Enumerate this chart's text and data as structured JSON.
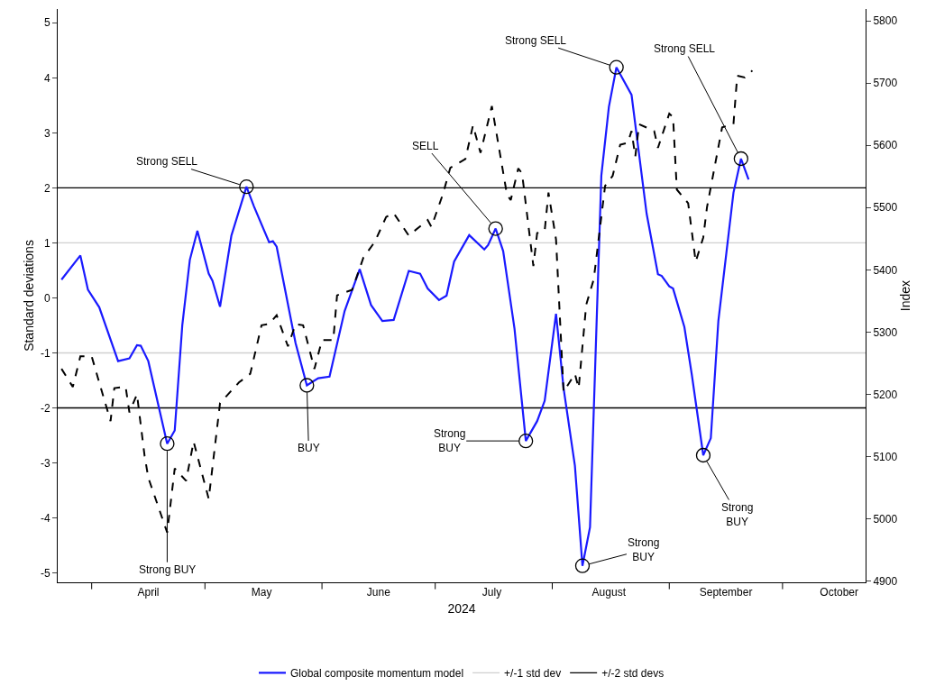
{
  "chart_data": {
    "type": "line",
    "xlabel": "2024",
    "ylabel": "Standard deviations",
    "y2label": "Index",
    "xlim": [
      "2024-03-23",
      "2024-10-23"
    ],
    "xticks": [
      {
        "value": "2024-04-01",
        "label": null
      },
      {
        "value": "2024-04-16",
        "label": "April"
      },
      {
        "value": "2024-05-01",
        "label": null
      },
      {
        "value": "2024-05-16",
        "label": "May"
      },
      {
        "value": "2024-06-01",
        "label": null
      },
      {
        "value": "2024-06-16",
        "label": "June"
      },
      {
        "value": "2024-07-01",
        "label": null
      },
      {
        "value": "2024-07-16",
        "label": "July"
      },
      {
        "value": "2024-08-01",
        "label": null
      },
      {
        "value": "2024-08-16",
        "label": "August"
      },
      {
        "value": "2024-09-01",
        "label": null
      },
      {
        "value": "2024-09-16",
        "label": "September"
      },
      {
        "value": "2024-10-01",
        "label": null
      },
      {
        "value": "2024-10-16",
        "label": "October"
      }
    ],
    "ylim": [
      -5.17,
      5.25
    ],
    "yticks": [
      -5,
      -4,
      -3,
      -2,
      -1,
      0,
      1,
      2,
      3,
      4,
      5
    ],
    "y2lim": [
      4898,
      5819
    ],
    "y2ticks": [
      4900,
      5000,
      5100,
      5200,
      5300,
      5400,
      5500,
      5600,
      5700,
      5800
    ],
    "legend": "bottom",
    "series": [
      {
        "color": "#000000",
        "axis": "y2",
        "line_style": "dashed",
        "x": [
          "2024-03-24",
          "2024-03-27",
          "2024-03-29",
          "2024-04-01",
          "2024-04-03",
          "2024-04-06",
          "2024-04-07",
          "2024-04-10",
          "2024-04-11",
          "2024-04-13",
          "2024-04-15",
          "2024-04-16",
          "2024-04-21",
          "2024-04-23",
          "2024-04-26",
          "2024-04-28",
          "2024-05-02",
          "2024-05-05",
          "2024-05-10",
          "2024-05-13",
          "2024-05-16",
          "2024-05-18",
          "2024-05-20",
          "2024-05-23",
          "2024-05-25",
          "2024-05-27",
          "2024-05-30",
          "2024-06-01",
          "2024-06-04",
          "2024-06-05",
          "2024-06-09",
          "2024-06-12",
          "2024-06-15",
          "2024-06-18",
          "2024-06-20",
          "2024-06-24",
          "2024-06-29",
          "2024-06-30",
          "2024-07-03",
          "2024-07-05",
          "2024-07-09",
          "2024-07-11",
          "2024-07-13",
          "2024-07-16",
          "2024-07-20",
          "2024-07-21",
          "2024-07-23",
          "2024-07-24",
          "2024-07-27",
          "2024-07-28",
          "2024-07-30",
          "2024-07-31",
          "2024-08-02",
          "2024-08-04",
          "2024-08-07",
          "2024-08-08",
          "2024-08-10",
          "2024-08-12",
          "2024-08-15",
          "2024-08-17",
          "2024-08-19",
          "2024-08-21",
          "2024-08-22",
          "2024-08-23",
          "2024-08-24",
          "2024-08-28",
          "2024-08-29",
          "2024-09-01",
          "2024-09-02",
          "2024-09-03",
          "2024-09-06",
          "2024-09-08",
          "2024-09-10",
          "2024-09-11",
          "2024-09-15",
          "2024-09-18",
          "2024-09-19",
          "2024-09-21",
          "2024-09-23"
        ],
        "values": [
          5241,
          5212,
          5261,
          5261,
          5219,
          5157,
          5210,
          5212,
          5171,
          5200,
          5102,
          5066,
          4978,
          5081,
          5061,
          5124,
          5032,
          5186,
          5219,
          5233,
          5311,
          5313,
          5327,
          5277,
          5313,
          5311,
          5241,
          5287,
          5287,
          5359,
          5368,
          5420,
          5445,
          5485,
          5491,
          5455,
          5480,
          5469,
          5521,
          5564,
          5578,
          5632,
          5588,
          5663,
          5521,
          5512,
          5563,
          5555,
          5406,
          5459,
          5463,
          5524,
          5449,
          5204,
          5233,
          5210,
          5344,
          5385,
          5535,
          5551,
          5601,
          5604,
          5623,
          5582,
          5634,
          5623,
          5596,
          5651,
          5645,
          5529,
          5507,
          5413,
          5452,
          5501,
          5629,
          5634,
          5712,
          5709,
          5720
        ]
      },
      {
        "name": "Global composite momentum model",
        "color": "#1a1aff",
        "line_style": "solid",
        "x": [
          "2024-03-24",
          "2024-03-29",
          "2024-03-31",
          "2024-04-03",
          "2024-04-08",
          "2024-04-11",
          "2024-04-13",
          "2024-04-14",
          "2024-04-16",
          "2024-04-21",
          "2024-04-23",
          "2024-04-25",
          "2024-04-27",
          "2024-04-29",
          "2024-05-02",
          "2024-05-03",
          "2024-05-05",
          "2024-05-08",
          "2024-05-12",
          "2024-05-14",
          "2024-05-18",
          "2024-05-19",
          "2024-05-20",
          "2024-05-25",
          "2024-05-28",
          "2024-05-31",
          "2024-06-03",
          "2024-06-07",
          "2024-06-11",
          "2024-06-14",
          "2024-06-17",
          "2024-06-20",
          "2024-06-24",
          "2024-06-27",
          "2024-06-29",
          "2024-07-02",
          "2024-07-04",
          "2024-07-06",
          "2024-07-10",
          "2024-07-14",
          "2024-07-15",
          "2024-07-17",
          "2024-07-19",
          "2024-07-22",
          "2024-07-25",
          "2024-07-28",
          "2024-07-30",
          "2024-08-02",
          "2024-08-04",
          "2024-08-07",
          "2024-08-09",
          "2024-08-11",
          "2024-08-14",
          "2024-08-16",
          "2024-08-18",
          "2024-08-22",
          "2024-08-26",
          "2024-08-29",
          "2024-08-30",
          "2024-09-01",
          "2024-09-02",
          "2024-09-05",
          "2024-09-07",
          "2024-09-10",
          "2024-09-12",
          "2024-09-14",
          "2024-09-18",
          "2024-09-20",
          "2024-09-22"
        ],
        "values": [
          0.33,
          0.77,
          0.15,
          -0.17,
          -1.15,
          -1.1,
          -0.86,
          -0.87,
          -1.15,
          -2.65,
          -2.41,
          -0.5,
          0.69,
          1.22,
          0.44,
          0.31,
          -0.16,
          1.13,
          2.02,
          1.66,
          1.01,
          1.03,
          0.93,
          -0.82,
          -1.59,
          -1.46,
          -1.43,
          -0.24,
          0.52,
          -0.13,
          -0.42,
          -0.4,
          0.49,
          0.44,
          0.17,
          -0.04,
          0.04,
          0.66,
          1.14,
          0.88,
          0.96,
          1.26,
          0.85,
          -0.56,
          -2.6,
          -2.24,
          -1.87,
          -0.29,
          -1.64,
          -3.05,
          -4.87,
          -4.17,
          2.22,
          3.47,
          4.19,
          3.69,
          1.53,
          0.43,
          0.4,
          0.21,
          0.17,
          -0.53,
          -1.41,
          -2.86,
          -2.55,
          -0.42,
          1.91,
          2.53,
          2.15
        ]
      }
    ],
    "ref_lines": [
      {
        "axis": "y",
        "value": 1,
        "label": "+/-1 std dev",
        "color": "#d0d0d0"
      },
      {
        "axis": "y",
        "value": -1,
        "color": "#d0d0d0"
      },
      {
        "axis": "y",
        "value": 2,
        "label": "+/-2 std devs",
        "color": "#000000"
      },
      {
        "axis": "y",
        "value": -2,
        "color": "#000000"
      }
    ],
    "annotations": [
      {
        "text": "Strong BUY",
        "x": "2024-04-21",
        "y": -2.65
      },
      {
        "text": "Strong SELL",
        "x": "2024-05-12",
        "y": 2.02
      },
      {
        "text": "BUY",
        "x": "2024-05-28",
        "y": -1.59
      },
      {
        "text": "SELL",
        "x": "2024-07-17",
        "y": 1.26
      },
      {
        "text": "Strong\nBUY",
        "x": "2024-07-25",
        "y": -2.6
      },
      {
        "text": "Strong\nBUY",
        "x": "2024-08-09",
        "y": -4.87
      },
      {
        "text": "Strong SELL",
        "x": "2024-08-18",
        "y": 4.19
      },
      {
        "text": "Strong\nBUY",
        "x": "2024-09-10",
        "y": -2.86
      },
      {
        "text": "Strong SELL",
        "x": "2024-09-20",
        "y": 2.53
      }
    ]
  }
}
